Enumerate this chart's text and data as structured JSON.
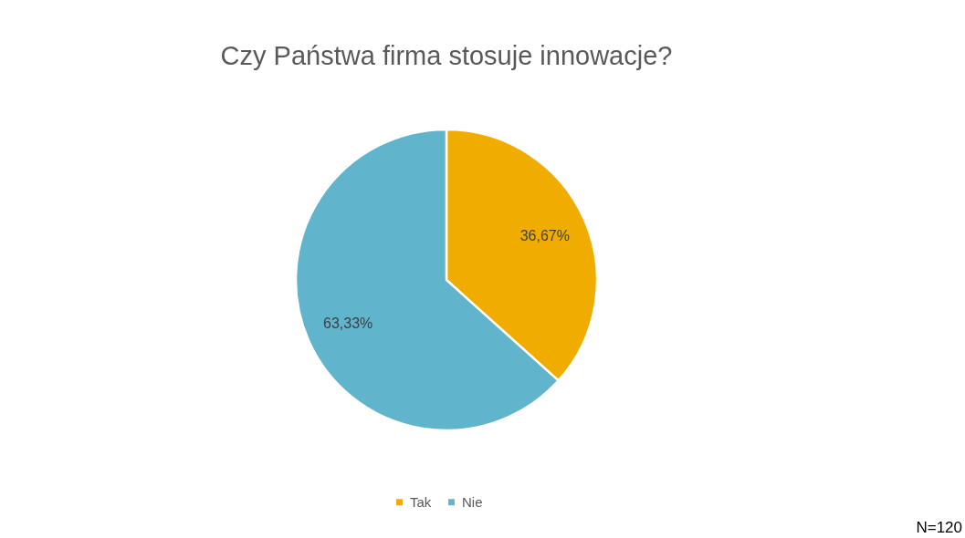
{
  "chart_data": {
    "type": "pie",
    "title": "Czy Państwa firma stosuje innowacje?",
    "categories": [
      "Tak",
      "Nie"
    ],
    "values": [
      36.67,
      63.33
    ],
    "colors": [
      "#f0ad00",
      "#60b4cc"
    ],
    "value_labels": [
      "36,67%",
      "63,33%"
    ],
    "legend": "bottom",
    "annotations": [
      "N=120"
    ]
  }
}
